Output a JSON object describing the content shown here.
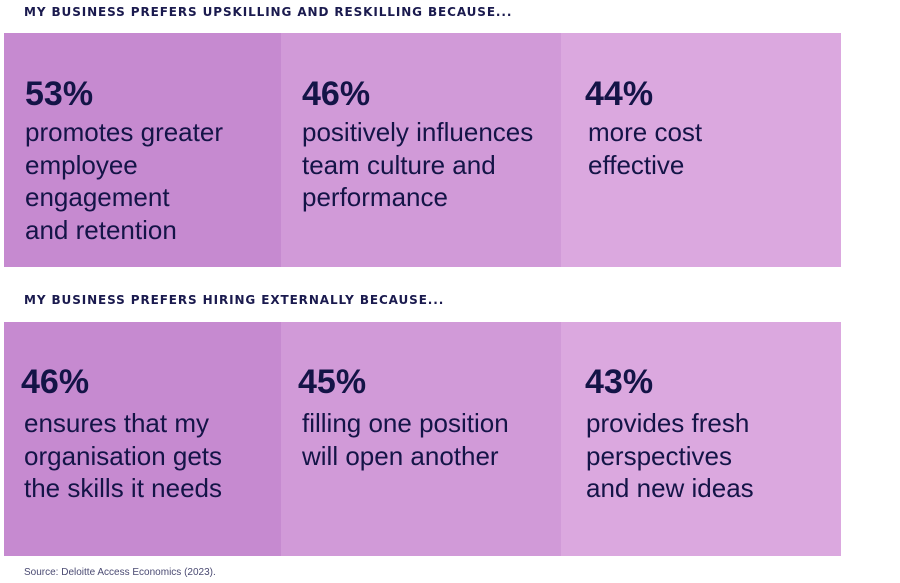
{
  "sections": [
    {
      "heading": "MY BUSINESS PREFERS UPSKILLING AND RESKILLING BECAUSE...",
      "stats": [
        {
          "value": "53%",
          "text": "promotes greater\nemployee\nengagement\nand retention"
        },
        {
          "value": "46%",
          "text": "positively influences\nteam culture and\nperformance"
        },
        {
          "value": "44%",
          "text": "more cost\neffective"
        }
      ]
    },
    {
      "heading": "MY BUSINESS PREFERS HIRING EXTERNALLY BECAUSE...",
      "stats": [
        {
          "value": "46%",
          "text": "ensures that my\norganisation gets\nthe skills it needs"
        },
        {
          "value": "45%",
          "text": "filling one position\nwill open another"
        },
        {
          "value": "43%",
          "text": "provides fresh\nperspectives\nand new ideas"
        }
      ]
    }
  ],
  "source": "Source: Deloitte Access Economics (2023).",
  "colors": {
    "card_dark": "#c68ad0",
    "card_mid": "#d19ad8",
    "card_light": "#dba8df",
    "text": "#141447"
  }
}
